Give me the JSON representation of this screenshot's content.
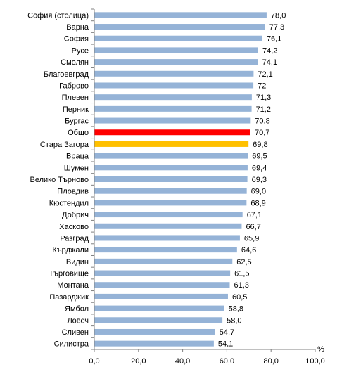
{
  "chart_data": {
    "type": "bar",
    "orientation": "horizontal",
    "categories": [
      "София (столица)",
      "Варна",
      "София",
      "Русе",
      "Смолян",
      "Благоевград",
      "Габрово",
      "Плевен",
      "Перник",
      "Бургас",
      "Общо",
      "Стара Загора",
      "Враца",
      "Шумен",
      "Велико Търново",
      "Пловдив",
      "Кюстендил",
      "Добрич",
      "Хасково",
      "Разград",
      "Кърджали",
      "Видин",
      "Търговище",
      "Монтана",
      "Пазарджик",
      "Ямбол",
      "Ловеч",
      "Сливен",
      "Силистра"
    ],
    "values": [
      78.0,
      77.3,
      76.1,
      74.2,
      74.1,
      72.1,
      72,
      71.3,
      71.2,
      70.8,
      70.7,
      69.8,
      69.5,
      69.4,
      69.3,
      69.0,
      68.9,
      67.1,
      66.7,
      65.9,
      64.6,
      62.5,
      61.5,
      61.3,
      60.5,
      58.8,
      58.0,
      54.7,
      54.1
    ],
    "value_labels": [
      "78,0",
      "77,3",
      "76,1",
      "74,2",
      "74,1",
      "72,1",
      "72",
      "71,3",
      "71,2",
      "70,8",
      "70,7",
      "69,8",
      "69,5",
      "69,4",
      "69,3",
      "69,0",
      "68,9",
      "67,1",
      "66,7",
      "65,9",
      "64,6",
      "62,5",
      "61,5",
      "61,3",
      "60,5",
      "58,8",
      "58,0",
      "54,7",
      "54,1"
    ],
    "highlight": {
      "Общо": "#ff0000",
      "Стара Загора": "#ffc000"
    },
    "bar_color": "#95b3d7",
    "xlim": [
      0,
      100
    ],
    "xticks": [
      0,
      20,
      40,
      60,
      80,
      100
    ],
    "xtick_labels": [
      "0,0",
      "20,0",
      "40,0",
      "60,0",
      "80,0",
      "100,0"
    ],
    "x_unit": "%",
    "grid": false,
    "legend": "none"
  }
}
